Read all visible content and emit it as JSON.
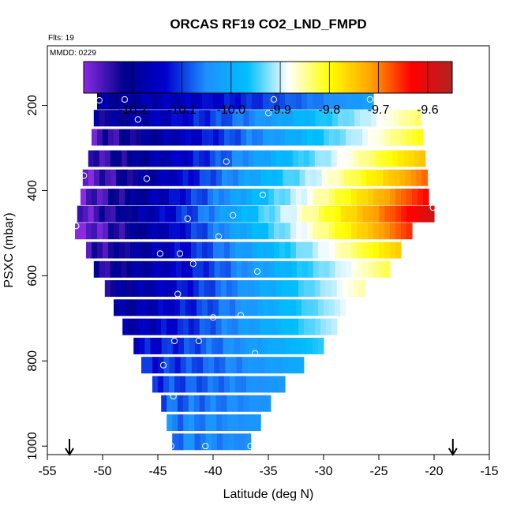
{
  "chart_data": {
    "type": "heatmap",
    "title": "ORCAS RF19 CO2_LND_FMPD",
    "flights_note": "Flts: 19",
    "date_note": "MMDD: 0229",
    "xlabel": "Latitude (deg N)",
    "ylabel": "PSXC (mbar)",
    "xlim": [
      -55,
      -15
    ],
    "ylim": [
      1020,
      60
    ],
    "x_ticks": [
      -55,
      -50,
      -45,
      -40,
      -35,
      -30,
      -25,
      -20,
      -15
    ],
    "x_tick_labels": [
      "-55",
      "-50",
      "-45",
      "-40",
      "-35",
      "-30",
      "-25",
      "-20",
      "-15"
    ],
    "y_ticks": [
      200,
      400,
      600,
      800,
      1000
    ],
    "y_tick_labels": [
      "200",
      "400",
      "600",
      "800",
      "1000"
    ],
    "colorbar": {
      "range": [
        -10.3,
        -9.55
      ],
      "ticks": [
        -10.2,
        -10.1,
        -10.0,
        -9.9,
        -9.8,
        -9.7,
        -9.6
      ],
      "tick_labels": [
        "-10.2",
        "-10.1",
        "-10.0",
        "-9.9",
        "-9.8",
        "-9.7",
        "-9.6"
      ],
      "colors": [
        "#8a2be2",
        "#00008b",
        "#0000cd",
        "#1e90ff",
        "#00bfff",
        "#ffffff",
        "#ffff00",
        "#ffa500",
        "#ff0000",
        "#b22222"
      ]
    },
    "bands": [
      {
        "p": 190,
        "lat0": -50.5,
        "lat1": -25.5,
        "v0": -10.2,
        "v1": -10.02
      },
      {
        "p": 230,
        "lat0": -50.8,
        "lat1": -21.2,
        "v0": -10.22,
        "v1": -9.83
      },
      {
        "p": 275,
        "lat0": -51.0,
        "lat1": -21.0,
        "v0": -10.26,
        "v1": -9.8
      },
      {
        "p": 325,
        "lat0": -51.3,
        "lat1": -20.8,
        "v0": -10.26,
        "v1": -9.74
      },
      {
        "p": 370,
        "lat0": -51.8,
        "lat1": -20.6,
        "v0": -10.28,
        "v1": -9.68
      },
      {
        "p": 415,
        "lat0": -52.0,
        "lat1": -20.5,
        "v0": -10.28,
        "v1": -9.63
      },
      {
        "p": 455,
        "lat0": -52.3,
        "lat1": -20.0,
        "v0": -10.28,
        "v1": -9.58
      },
      {
        "p": 495,
        "lat0": -52.5,
        "lat1": -22.0,
        "v0": -10.3,
        "v1": -9.65
      },
      {
        "p": 540,
        "lat0": -51.5,
        "lat1": -23.0,
        "v0": -10.26,
        "v1": -9.75
      },
      {
        "p": 585,
        "lat0": -50.8,
        "lat1": -24.0,
        "v0": -10.24,
        "v1": -9.82
      },
      {
        "p": 630,
        "lat0": -49.8,
        "lat1": -26.3,
        "v0": -10.22,
        "v1": -9.85
      },
      {
        "p": 675,
        "lat0": -49.0,
        "lat1": -27.5,
        "v0": -10.2,
        "v1": -9.88
      },
      {
        "p": 720,
        "lat0": -48.2,
        "lat1": -28.8,
        "v0": -10.18,
        "v1": -9.9
      },
      {
        "p": 765,
        "lat0": -47.2,
        "lat1": -30.0,
        "v0": -10.14,
        "v1": -9.95
      },
      {
        "p": 810,
        "lat0": -46.5,
        "lat1": -31.8,
        "v0": -10.12,
        "v1": -10.0
      },
      {
        "p": 855,
        "lat0": -45.5,
        "lat1": -33.5,
        "v0": -10.1,
        "v1": -10.03
      },
      {
        "p": 900,
        "lat0": -44.7,
        "lat1": -34.8,
        "v0": -10.08,
        "v1": -10.04
      },
      {
        "p": 945,
        "lat0": -44.2,
        "lat1": -35.7,
        "v0": -10.06,
        "v1": -10.04
      },
      {
        "p": 990,
        "lat0": -43.7,
        "lat1": -36.6,
        "v0": -10.06,
        "v1": -10.05
      }
    ],
    "points": [
      {
        "lat": -50.3,
        "p": 188
      },
      {
        "lat": -48.0,
        "p": 186
      },
      {
        "lat": -46.8,
        "p": 233
      },
      {
        "lat": -34.5,
        "p": 186
      },
      {
        "lat": -35.0,
        "p": 218
      },
      {
        "lat": -25.8,
        "p": 186
      },
      {
        "lat": -21.3,
        "p": 215
      },
      {
        "lat": -51.7,
        "p": 365
      },
      {
        "lat": -46.0,
        "p": 372
      },
      {
        "lat": -38.8,
        "p": 332
      },
      {
        "lat": -35.5,
        "p": 410
      },
      {
        "lat": -20.1,
        "p": 440
      },
      {
        "lat": -52.4,
        "p": 483
      },
      {
        "lat": -42.3,
        "p": 466
      },
      {
        "lat": -38.2,
        "p": 458
      },
      {
        "lat": -39.5,
        "p": 508
      },
      {
        "lat": -44.8,
        "p": 548
      },
      {
        "lat": -43.0,
        "p": 548
      },
      {
        "lat": -41.8,
        "p": 572
      },
      {
        "lat": -36.0,
        "p": 590
      },
      {
        "lat": -43.2,
        "p": 643
      },
      {
        "lat": -40.0,
        "p": 698
      },
      {
        "lat": -37.5,
        "p": 693
      },
      {
        "lat": -43.5,
        "p": 753
      },
      {
        "lat": -41.3,
        "p": 753
      },
      {
        "lat": -36.2,
        "p": 782
      },
      {
        "lat": -44.5,
        "p": 810
      },
      {
        "lat": -43.6,
        "p": 883
      },
      {
        "lat": -43.8,
        "p": 1000
      },
      {
        "lat": -40.7,
        "p": 1000
      },
      {
        "lat": -36.6,
        "p": 1000
      }
    ],
    "arrows_lat": [
      -53.0,
      -18.3
    ]
  }
}
